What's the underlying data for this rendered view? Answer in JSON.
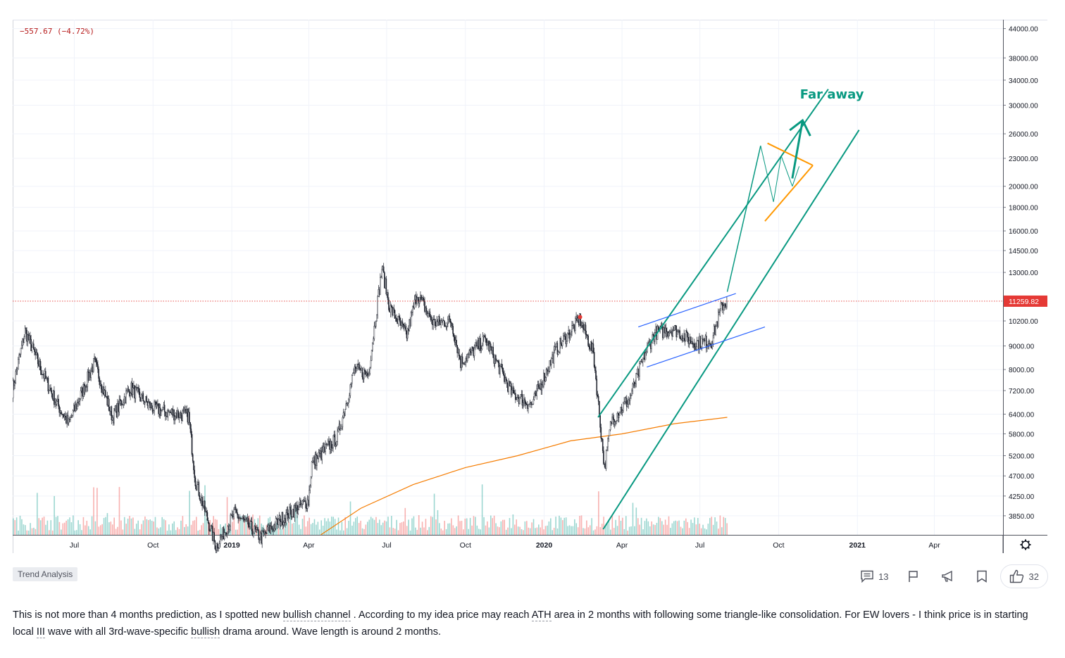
{
  "header": {
    "change_text": "−557.67 (−4.72%)"
  },
  "chart_data": {
    "type": "candlestick",
    "title": "",
    "x_ticks": [
      "Jul",
      "Oct",
      "2019",
      "Apr",
      "Jul",
      "Oct",
      "2020",
      "Apr",
      "Jul",
      "Oct",
      "2021",
      "Apr"
    ],
    "y_ticks": [
      "44000.00",
      "38000.00",
      "34000.00",
      "30000.00",
      "26000.00",
      "23000.00",
      "20000.00",
      "18000.00",
      "16000.00",
      "14500.00",
      "13000.00",
      "10200.00",
      "9000.00",
      "8000.00",
      "7200.00",
      "6400.00",
      "5800.00",
      "5200.00",
      "4700.00",
      "4250.00",
      "3850.00"
    ],
    "y_scale": "log",
    "ylim": [
      3500,
      46000
    ],
    "last_price": 11259.82,
    "last_price_label": "11259.82",
    "price_path": [
      [
        "2018-04-20",
        7200
      ],
      [
        "2018-05-05",
        9700
      ],
      [
        "2018-05-20",
        8300
      ],
      [
        "2018-06-10",
        6800
      ],
      [
        "2018-06-25",
        6100
      ],
      [
        "2018-07-25",
        8300
      ],
      [
        "2018-08-15",
        6300
      ],
      [
        "2018-09-05",
        7300
      ],
      [
        "2018-10-01",
        6600
      ],
      [
        "2018-10-20",
        6450
      ],
      [
        "2018-11-12",
        6350
      ],
      [
        "2018-11-20",
        4600
      ],
      [
        "2018-12-14",
        3300
      ],
      [
        "2019-01-05",
        3900
      ],
      [
        "2019-02-05",
        3450
      ],
      [
        "2019-03-01",
        3800
      ],
      [
        "2019-04-01",
        4150
      ],
      [
        "2019-04-05",
        5000
      ],
      [
        "2019-05-05",
        5700
      ],
      [
        "2019-05-25",
        8000
      ],
      [
        "2019-06-10",
        7800
      ],
      [
        "2019-06-26",
        13300
      ],
      [
        "2019-07-05",
        10900
      ],
      [
        "2019-07-25",
        9500
      ],
      [
        "2019-08-06",
        11700
      ],
      [
        "2019-08-25",
        10100
      ],
      [
        "2019-09-15",
        10200
      ],
      [
        "2019-09-26",
        8300
      ],
      [
        "2019-10-25",
        9300
      ],
      [
        "2019-11-25",
        7100
      ],
      [
        "2019-12-18",
        6700
      ],
      [
        "2020-01-15",
        8800
      ],
      [
        "2020-02-12",
        10300
      ],
      [
        "2020-02-28",
        8700
      ],
      [
        "2020-03-12",
        4900
      ],
      [
        "2020-03-20",
        6200
      ],
      [
        "2020-04-10",
        6900
      ],
      [
        "2020-04-30",
        8800
      ],
      [
        "2020-05-10",
        9600
      ],
      [
        "2020-06-01",
        9800
      ],
      [
        "2020-06-25",
        9150
      ],
      [
        "2020-07-15",
        9200
      ],
      [
        "2020-07-27",
        11000
      ],
      [
        "2020-08-02",
        11259.82
      ]
    ],
    "moving_average_200": [
      [
        "2019-04-15",
        3500
      ],
      [
        "2019-06-01",
        4000
      ],
      [
        "2019-08-01",
        4500
      ],
      [
        "2019-10-01",
        4900
      ],
      [
        "2019-12-01",
        5200
      ],
      [
        "2020-02-01",
        5600
      ],
      [
        "2020-04-01",
        5800
      ],
      [
        "2020-06-01",
        6100
      ],
      [
        "2020-08-02",
        6300
      ]
    ],
    "drawings": {
      "main_channel_color": "#089981",
      "small_channel_color": "#2962ff",
      "triangle_color": "#ff9800",
      "ma_color": "#f57c00",
      "up_color": "#26a69a",
      "down_color": "#ef5350",
      "candle_color": "#1e222d",
      "annotation_text": "Far away"
    }
  },
  "footer": {
    "tag": "Trend Analysis",
    "comments_count": "13",
    "likes_count": "32"
  },
  "description": {
    "part1": "This is not more than 4 months prediction, as I spotted new ",
    "kw1": "bullish channel",
    "part2": " . According to my idea price may reach ",
    "kw2": "ATH",
    "part3": " area in 2 months with following some triangle-like consolidation. For EW lovers - I think price is in starting local ",
    "kw3": "III",
    "part4": " wave with all 3rd-wave-specific ",
    "kw4": "bullish",
    "part5": " drama around. Wave length is around 2 months."
  }
}
